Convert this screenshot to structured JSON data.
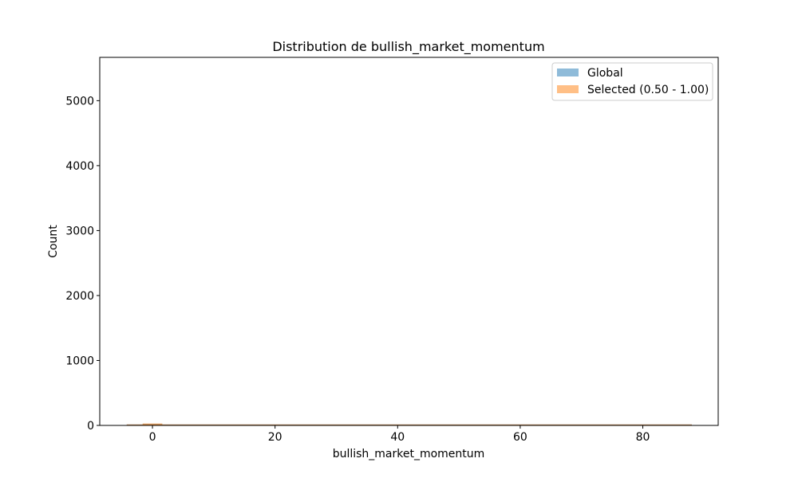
{
  "chart_data": {
    "type": "bar",
    "title": "Distribution de bullish_market_momentum",
    "xlabel": "bullish_market_momentum",
    "ylabel": "Count",
    "xlim": [
      -8.6,
      92.3
    ],
    "ylim": [
      0,
      5667
    ],
    "x_ticks": [
      0,
      20,
      40,
      60,
      80
    ],
    "y_ticks": [
      0,
      1000,
      2000,
      3000,
      4000,
      5000
    ],
    "x_range_drawn": [
      -4.2,
      88.0
    ],
    "grid": false,
    "legend_position": "top-right",
    "series": [
      {
        "name": "Global",
        "color": "#1f77b4",
        "opacity": 0.5,
        "bins": [
          {
            "x0": -1.6,
            "x1": 1.6,
            "count": 25
          },
          {
            "x0": 1.6,
            "x1": 88.0,
            "count": 2
          }
        ]
      },
      {
        "name": "Selected (0.50 - 1.00)",
        "color": "#ff7f0e",
        "opacity": 0.5,
        "bins": [
          {
            "x0": -1.6,
            "x1": 1.6,
            "count": 30
          },
          {
            "x0": 1.6,
            "x1": 88.0,
            "count": 3
          }
        ]
      }
    ],
    "legend_labels": [
      "Global",
      "Selected (0.50 - 1.00)"
    ]
  }
}
